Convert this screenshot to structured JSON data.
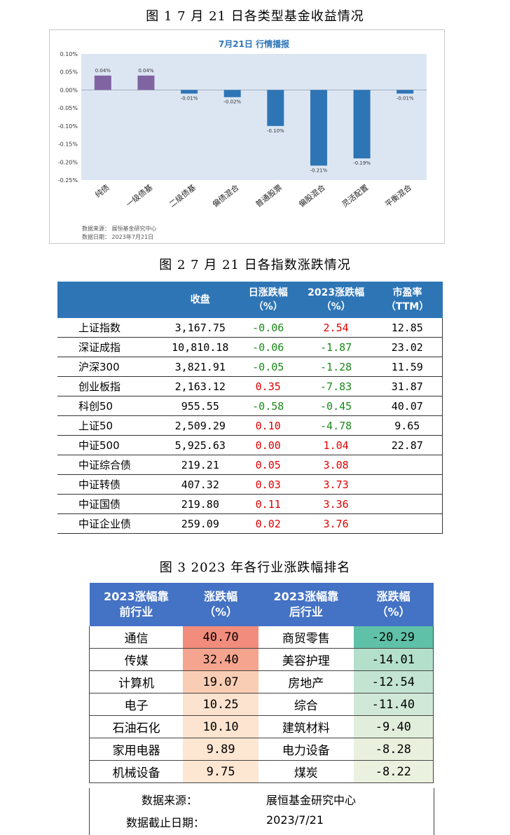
{
  "fig1": {
    "caption": "图 1   7 月 21 日各类型基金收益情况",
    "chart_data": {
      "type": "bar",
      "title": "7月21日  行情播报",
      "categories": [
        "纯债",
        "一级债基",
        "二级债基",
        "偏债混合",
        "普通股票",
        "偏股混合",
        "灵活配置",
        "平衡混合"
      ],
      "values": [
        0.04,
        0.04,
        -0.01,
        -0.02,
        -0.1,
        -0.21,
        -0.19,
        -0.01
      ],
      "value_labels": [
        "0.04%",
        "0.04%",
        "-0.01%",
        "-0.02%",
        "-0.10%",
        "-0.21%",
        "-0.19%",
        "-0.01%"
      ],
      "y_ticks": [
        "0.10%",
        "0.05%",
        "0.00%",
        "-0.05%",
        "-0.10%",
        "-0.15%",
        "-0.20%",
        "-0.25%"
      ],
      "ylim": [
        -0.25,
        0.1
      ],
      "grid": false,
      "colors": {
        "positive": "#8064a2",
        "negative": "#2e75b6",
        "plot_bg": "#dce6f2",
        "title": "#2e75b6"
      }
    },
    "source_line1": "数据来源：  展恒基金研究中心",
    "source_line2": "数据日期：  2023年7月21日"
  },
  "fig2": {
    "caption": "图 2    7 月 21 日各指数涨跌情况",
    "headers": [
      "",
      "收盘",
      "日涨跌幅\n（%）",
      "2023涨跌幅\n（%）",
      "市盈率\n（TTM）"
    ],
    "header_row1": [
      "",
      "收盘",
      "日涨跌幅",
      "2023涨跌幅",
      "市盈率"
    ],
    "header_row2": [
      "",
      "",
      "（%）",
      "（%）",
      "（TTM）"
    ],
    "rows": [
      {
        "name": "上证指数",
        "close": "3,167.75",
        "day": "-0.06",
        "ytd": "2.54",
        "pe": "12.85",
        "day_color": "green",
        "ytd_color": "red"
      },
      {
        "name": "深证成指",
        "close": "10,810.18",
        "day": "-0.06",
        "ytd": "-1.87",
        "pe": "23.02",
        "day_color": "green",
        "ytd_color": "green"
      },
      {
        "name": "沪深300",
        "close": "3,821.91",
        "day": "-0.05",
        "ytd": "-1.28",
        "pe": "11.59",
        "day_color": "green",
        "ytd_color": "green"
      },
      {
        "name": "创业板指",
        "close": "2,163.12",
        "day": "0.35",
        "ytd": "-7.83",
        "pe": "31.87",
        "day_color": "red",
        "ytd_color": "green"
      },
      {
        "name": "科创50",
        "close": "955.55",
        "day": "-0.58",
        "ytd": "-0.45",
        "pe": "40.07",
        "day_color": "green",
        "ytd_color": "green"
      },
      {
        "name": "上证50",
        "close": "2,509.29",
        "day": "0.10",
        "ytd": "-4.78",
        "pe": "9.65",
        "day_color": "red",
        "ytd_color": "green"
      },
      {
        "name": "中证500",
        "close": "5,925.63",
        "day": "0.00",
        "ytd": "1.04",
        "pe": "22.87",
        "day_color": "red",
        "ytd_color": "red"
      },
      {
        "name": "中证综合债",
        "close": "219.21",
        "day": "0.05",
        "ytd": "3.08",
        "pe": "",
        "day_color": "red",
        "ytd_color": "red"
      },
      {
        "name": "中证转债",
        "close": "407.32",
        "day": "0.03",
        "ytd": "3.73",
        "pe": "",
        "day_color": "red",
        "ytd_color": "red"
      },
      {
        "name": "中证国债",
        "close": "219.80",
        "day": "0.11",
        "ytd": "3.36",
        "pe": "",
        "day_color": "red",
        "ytd_color": "red"
      },
      {
        "name": "中证企业债",
        "close": "259.09",
        "day": "0.02",
        "ytd": "3.76",
        "pe": "",
        "day_color": "red",
        "ytd_color": "red"
      }
    ]
  },
  "fig3": {
    "caption": "图 3    2023 年各行业涨跌幅排名",
    "header_row1": [
      "2023涨幅靠",
      "涨跌幅",
      "2023涨幅靠",
      "涨跌幅"
    ],
    "header_row2": [
      "前行业",
      "（%）",
      "后行业",
      "（%）"
    ],
    "rows": [
      {
        "top": "通信",
        "top_val": "40.70",
        "top_bg": "#f28c7c",
        "bottom": "商贸零售",
        "bottom_val": "-20.29",
        "bottom_bg": "#5fc1a7"
      },
      {
        "top": "传媒",
        "top_val": "32.40",
        "top_bg": "#f5a48f",
        "bottom": "美容护理",
        "bottom_val": "-14.01",
        "bottom_bg": "#b4dfcb"
      },
      {
        "top": "计算机",
        "top_val": "19.07",
        "top_bg": "#f9cdb4",
        "bottom": "房地产",
        "bottom_val": "-12.54",
        "bottom_bg": "#c3e4d2"
      },
      {
        "top": "电子",
        "top_val": "10.25",
        "top_bg": "#fce3cf",
        "bottom": "综合",
        "bottom_val": "-11.40",
        "bottom_bg": "#d0e8d8"
      },
      {
        "top": "石油石化",
        "top_val": "10.10",
        "top_bg": "#fce4d0",
        "bottom": "建筑材料",
        "bottom_val": "-9.40",
        "bottom_bg": "#e2eedc"
      },
      {
        "top": "家用电器",
        "top_val": "9.89",
        "top_bg": "#fde6d2",
        "bottom": "电力设备",
        "bottom_val": "-8.28",
        "bottom_bg": "#e9f1de"
      },
      {
        "top": "机械设备",
        "top_val": "9.75",
        "top_bg": "#fde7d3",
        "bottom": "煤炭",
        "bottom_val": "-8.22",
        "bottom_bg": "#eaf1df"
      }
    ],
    "source_label": "数据来源：",
    "source_value": "展恒基金研究中心",
    "date_label": "数据截止日期：",
    "date_value": "2023/7/21"
  }
}
